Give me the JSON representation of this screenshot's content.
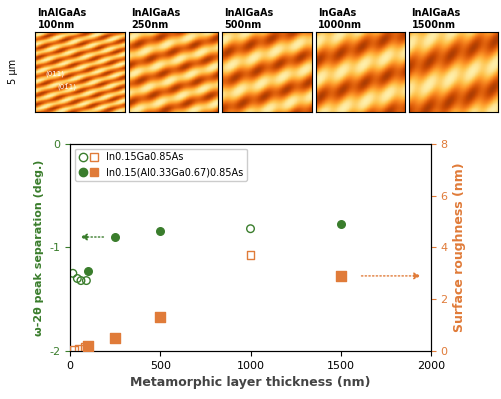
{
  "images": [
    {
      "label": "InAlGaAs\n100nm"
    },
    {
      "label": "InAlGaAs\n250nm"
    },
    {
      "label": "InAlGaAs\n500nm"
    },
    {
      "label": "InGaAs\n1000nm"
    },
    {
      "label": "InAlGaAs\n1500nm"
    }
  ],
  "scale_label": "5 μm",
  "directions": [
    "(011)",
    "(01̄1)"
  ],
  "chart_data": {
    "type": "scatter",
    "x_label": "Metamorphic layer thickness (nm)",
    "y_label": "ω-2θ peak separation (deg.)",
    "y2_label": "Surface roughness (nm)",
    "xlim": [
      0,
      2000
    ],
    "xticks": [
      0,
      500,
      1000,
      1500,
      2000
    ],
    "ylim": [
      -2,
      0
    ],
    "yticks": [
      -2,
      -1,
      0
    ],
    "y2lim": [
      0,
      8
    ],
    "y2ticks": [
      0,
      2,
      4,
      6,
      8
    ],
    "legend": "upper left",
    "series": [
      {
        "name": "In0.15Ga0.85As",
        "color": "#3a7d2c",
        "marker": "circle-open",
        "axis": "y",
        "x": [
          15,
          40,
          60,
          90,
          1000
        ],
        "values": [
          -1.25,
          -1.3,
          -1.32,
          -1.32,
          -0.82
        ]
      },
      {
        "name": "In0.15(Al0.33Ga0.67)0.85As",
        "color": "#3a7d2c",
        "marker": "circle",
        "axis": "y",
        "x": [
          100,
          250,
          500,
          1500
        ],
        "values": [
          -1.23,
          -0.9,
          -0.84,
          -0.77
        ]
      },
      {
        "name": "In0.15Ga0.85As",
        "color": "#e07b39",
        "marker": "square-open",
        "axis": "y2",
        "x": [
          20,
          50,
          80,
          1000
        ],
        "values": [
          0.05,
          0.1,
          0.15,
          3.7
        ]
      },
      {
        "name": "In0.15(Al0.33Ga0.67)0.85As",
        "color": "#e07b39",
        "marker": "square",
        "axis": "y2",
        "x": [
          100,
          250,
          500,
          1500
        ],
        "values": [
          0.2,
          0.5,
          1.3,
          2.9
        ]
      }
    ]
  }
}
